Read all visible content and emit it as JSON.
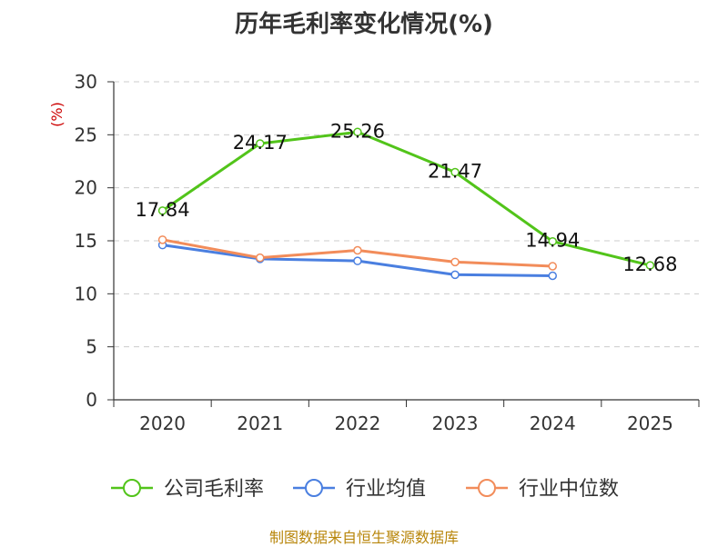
{
  "title": "历年毛利率变化情况(%)",
  "source": "制图数据来自恒生聚源数据库",
  "chart_data": {
    "type": "line",
    "title": "历年毛利率变化情况(%)",
    "ylabel": "(%)",
    "xlabel": "",
    "categories": [
      "2020",
      "2021",
      "2022",
      "2023",
      "2024",
      "2025"
    ],
    "ylim": [
      0,
      30
    ],
    "yticks": [
      "0",
      "5",
      "10",
      "15",
      "20",
      "25",
      "30"
    ],
    "grid": true,
    "legend_position": "bottom",
    "series": [
      {
        "name": "公司毛利率",
        "color": "#52c41a",
        "values": [
          17.84,
          24.17,
          25.26,
          21.47,
          14.94,
          12.68
        ],
        "labels": [
          "17.84",
          "24.17",
          "25.26",
          "21.47",
          "14.94",
          "12.68"
        ]
      },
      {
        "name": "行业均值",
        "color": "#4a7fe0",
        "values": [
          14.6,
          13.3,
          13.1,
          11.8,
          11.7,
          null
        ]
      },
      {
        "name": "行业中位数",
        "color": "#f28c5a",
        "values": [
          15.1,
          13.4,
          14.1,
          13.0,
          12.6,
          null
        ]
      }
    ]
  }
}
